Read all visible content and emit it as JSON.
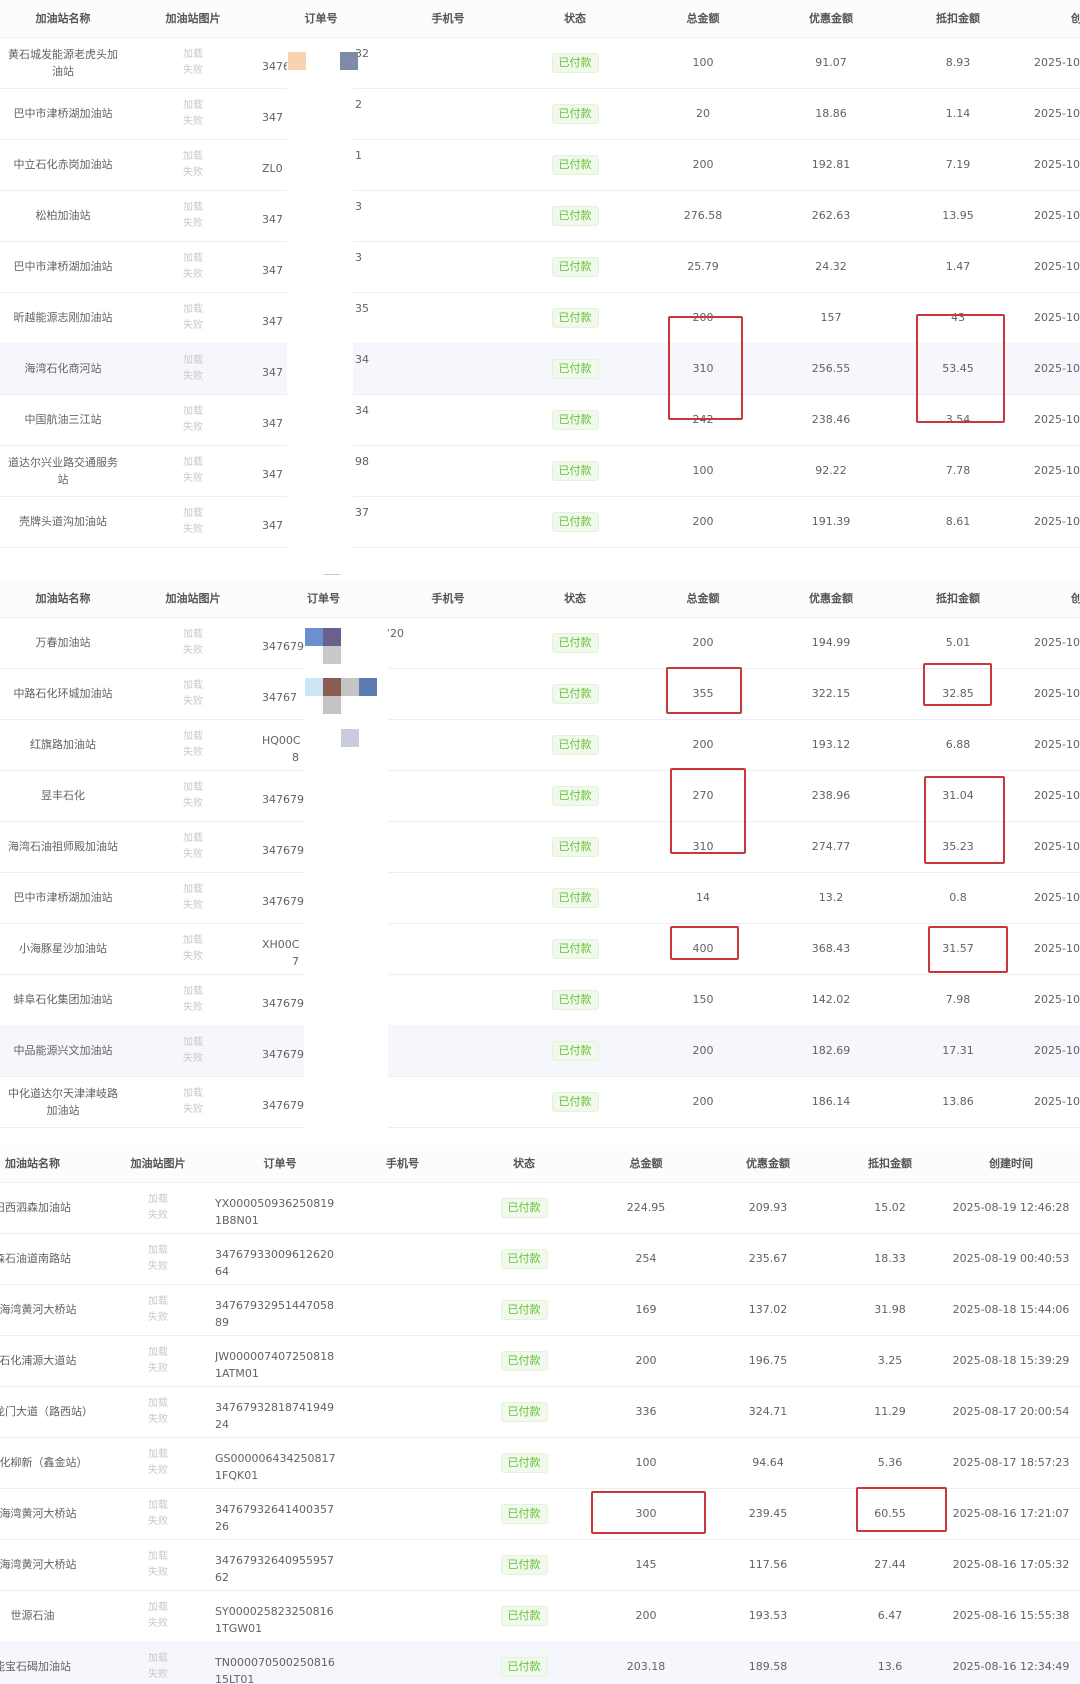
{
  "colors": {
    "status_bg": "#f0f9eb",
    "status_text": "#67c23a",
    "highlight_box": "#c8383b"
  },
  "headers": {
    "name": "加油站名称",
    "image": "加油站图片",
    "order": "订单号",
    "phone": "手机号",
    "status": "状态",
    "total": "总金额",
    "discount": "优惠金额",
    "deduct": "抵扣金额",
    "time": "创建时间",
    "time_cut": "创建"
  },
  "image_failed": [
    "加载",
    "失败"
  ],
  "status_paid": "已付款",
  "tables": [
    {
      "rows": [
        {
          "name": "黄石城发能源老虎头加油站",
          "order_pre": "3476",
          "order_suf": "32",
          "total": "100",
          "discount": "91.07",
          "deduct": "8.93",
          "time": "2025-10-"
        },
        {
          "name": "巴中市津桥湖加油站",
          "order_pre": "347",
          "order_suf": "2",
          "total": "20",
          "discount": "18.86",
          "deduct": "1.14",
          "time": "2025-10-"
        },
        {
          "name": "中立石化赤岗加油站",
          "order_pre": "ZL0",
          "order_suf": "1",
          "total": "200",
          "discount": "192.81",
          "deduct": "7.19",
          "time": "2025-10-"
        },
        {
          "name": "松柏加油站",
          "order_pre": "347",
          "order_suf": "3",
          "total": "276.58",
          "discount": "262.63",
          "deduct": "13.95",
          "time": "2025-10-"
        },
        {
          "name": "巴中市津桥湖加油站",
          "order_pre": "347",
          "order_suf": "3",
          "total": "25.79",
          "discount": "24.32",
          "deduct": "1.47",
          "time": "2025-10-"
        },
        {
          "name": "昕越能源志刚加油站",
          "order_pre": "347",
          "order_suf": "35",
          "total": "200",
          "discount": "157",
          "deduct": "43",
          "time": "2025-10-"
        },
        {
          "name": "海湾石化商河站",
          "order_pre": "347",
          "order_suf": "34",
          "total": "310",
          "discount": "256.55",
          "deduct": "53.45",
          "time": "2025-10-",
          "highlight": true
        },
        {
          "name": "中国航油三江站",
          "order_pre": "347",
          "order_suf": "34",
          "total": "242",
          "discount": "238.46",
          "deduct": "3.54",
          "time": "2025-10-"
        },
        {
          "name": "道达尔兴业路交通服务站",
          "order_pre": "347",
          "order_suf": "98",
          "total": "100",
          "discount": "92.22",
          "deduct": "7.78",
          "time": "2025-10-"
        },
        {
          "name": "壳牌头道沟加油站",
          "order_pre": "347",
          "order_suf": "37",
          "total": "200",
          "discount": "191.39",
          "deduct": "8.61",
          "time": "2025-10-"
        }
      ]
    },
    {
      "rows": [
        {
          "name": "万春加油站",
          "order_pre": "347679",
          "order_suf": "720",
          "total": "200",
          "discount": "194.99",
          "deduct": "5.01",
          "time": "2025-10-"
        },
        {
          "name": "中路石化环城加油站",
          "order_pre": "34767",
          "order_suf": "",
          "total": "355",
          "discount": "322.15",
          "deduct": "32.85",
          "time": "2025-10-"
        },
        {
          "name": "红旗路加油站",
          "order_pre": "HQ00C",
          "order_line2": "8",
          "order_suf": "",
          "total": "200",
          "discount": "193.12",
          "deduct": "6.88",
          "time": "2025-10-"
        },
        {
          "name": "昱丰石化",
          "order_pre": "347679",
          "order_suf": "",
          "total": "270",
          "discount": "238.96",
          "deduct": "31.04",
          "time": "2025-10-"
        },
        {
          "name": "海湾石油祖师殿加油站",
          "order_pre": "347679",
          "order_suf": "",
          "total": "310",
          "discount": "274.77",
          "deduct": "35.23",
          "time": "2025-10-"
        },
        {
          "name": "巴中市津桥湖加油站",
          "order_pre": "347679",
          "order_suf": "",
          "total": "14",
          "discount": "13.2",
          "deduct": "0.8",
          "time": "2025-10-"
        },
        {
          "name": "小海豚星沙加油站",
          "order_pre": "XH00C",
          "order_line2": "7",
          "order_suf": "",
          "total": "400",
          "discount": "368.43",
          "deduct": "31.57",
          "time": "2025-10-"
        },
        {
          "name": "蚌阜石化集团加油站",
          "order_pre": "347679",
          "order_suf": "",
          "total": "150",
          "discount": "142.02",
          "deduct": "7.98",
          "time": "2025-10-"
        },
        {
          "name": "中品能源兴文加油站",
          "order_pre": "347679",
          "order_suf": "",
          "total": "200",
          "discount": "182.69",
          "deduct": "17.31",
          "time": "2025-10-",
          "highlight": true
        },
        {
          "name": "中化道达尔天津津岐路加油站",
          "order_pre": "347679",
          "order_suf": "",
          "total": "200",
          "discount": "186.14",
          "deduct": "13.86",
          "time": "2025-10-"
        }
      ]
    },
    {
      "rows": [
        {
          "name": "旧西泗森加油站",
          "order_pre": "YX000050936250819",
          "order_line2": "1B8N01",
          "total": "224.95",
          "discount": "209.93",
          "deduct": "15.02",
          "time": "2025-08-19 12:46:28"
        },
        {
          "name": "森石油道南路站",
          "order_pre": "34767933009612620",
          "order_line2": "64",
          "total": "254",
          "discount": "235.67",
          "deduct": "18.33",
          "time": "2025-08-19 00:40:53"
        },
        {
          "name": "泽海湾黄河大桥站",
          "order_pre": "34767932951447058",
          "order_line2": "89",
          "total": "169",
          "discount": "137.02",
          "deduct": "31.98",
          "time": "2025-08-18 15:44:06"
        },
        {
          "name": "W石化浦源大道站",
          "order_pre": "JW000007407250818",
          "order_line2": "1ATM01",
          "total": "200",
          "discount": "196.75",
          "deduct": "3.25",
          "time": "2025-08-18 15:39:29"
        },
        {
          "name": "石油龙门大道（路西站）",
          "order_pre": "34767932818741949",
          "order_line2": "24",
          "total": "336",
          "discount": "324.71",
          "deduct": "11.29",
          "time": "2025-08-17 20:00:54"
        },
        {
          "name": "惠石化柳新（鑫金站）",
          "order_pre": "GS000006434250817",
          "order_line2": "1FQK01",
          "total": "100",
          "discount": "94.64",
          "deduct": "5.36",
          "time": "2025-08-17 18:57:23"
        },
        {
          "name": "泽海湾黄河大桥站",
          "order_pre": "34767932641400357",
          "order_line2": "26",
          "total": "300",
          "discount": "239.45",
          "deduct": "60.55",
          "time": "2025-08-16 17:21:07"
        },
        {
          "name": "泽海湾黄河大桥站",
          "order_pre": "34767932640955957",
          "order_line2": "62",
          "total": "145",
          "discount": "117.56",
          "deduct": "27.44",
          "time": "2025-08-16 17:05:32"
        },
        {
          "name": "世源石油",
          "order_pre": "SY000025823250816",
          "order_line2": "1TGW01",
          "total": "200",
          "discount": "193.53",
          "deduct": "6.47",
          "time": "2025-08-16 15:55:38"
        },
        {
          "name": "能宝石碣加油站",
          "order_pre": "TN000070500250816",
          "order_line2": "15LT01",
          "total": "203.18",
          "discount": "189.58",
          "deduct": "13.6",
          "time": "2025-08-16 12:34:49",
          "highlight": true
        }
      ]
    }
  ]
}
